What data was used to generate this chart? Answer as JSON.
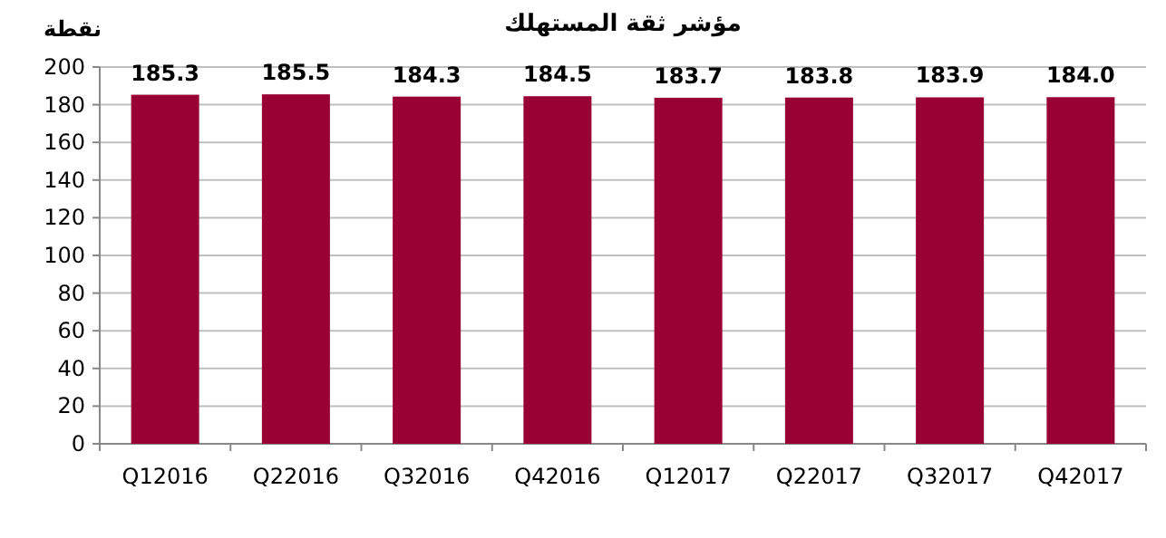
{
  "chart_data": {
    "type": "bar",
    "title": "مؤشر ثقة المستهلك",
    "ylabel": "نقطة",
    "categories": [
      "Q12016",
      "Q22016",
      "Q32016",
      "Q42016",
      "Q12017",
      "Q22017",
      "Q32017",
      "Q42017"
    ],
    "values": [
      185.3,
      185.5,
      184.3,
      184.5,
      183.7,
      183.8,
      183.9,
      184.0
    ],
    "value_labels": [
      "185.3",
      "185.5",
      "184.3",
      "184.5",
      "183.7",
      "183.8",
      "183.9",
      "184.0"
    ],
    "color": "#990033",
    "ylim": [
      0,
      200
    ],
    "yticks": [
      0,
      20,
      40,
      60,
      80,
      100,
      120,
      140,
      160,
      180,
      200
    ],
    "grid": "y"
  }
}
